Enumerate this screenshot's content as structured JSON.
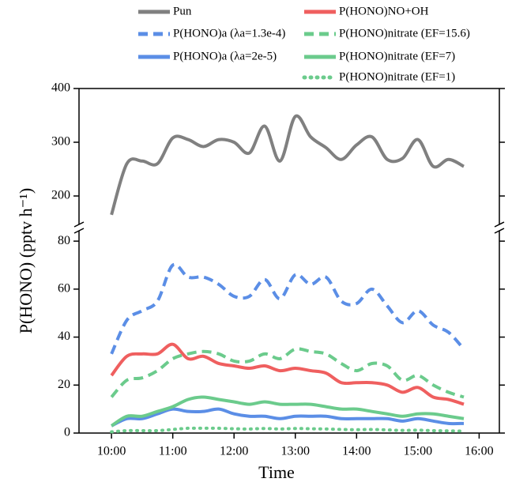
{
  "chart_data": [
    {
      "type": "line",
      "x": [
        10,
        10.25,
        10.5,
        10.75,
        11,
        11.25,
        11.5,
        11.75,
        12,
        12.25,
        12.5,
        12.75,
        13,
        13.25,
        13.5,
        13.75,
        14,
        14.25,
        14.5,
        14.75,
        15,
        15.25,
        15.5,
        15.75
      ],
      "xlim": [
        9.47,
        16.33
      ],
      "ylim": [
        150,
        400
      ],
      "yticks": [
        200,
        300,
        400
      ],
      "series": [
        {
          "name": "Pun",
          "color": "#808080",
          "dash": "solid",
          "values": [
            165,
            260,
            265,
            260,
            308,
            305,
            292,
            305,
            300,
            280,
            330,
            265,
            348,
            310,
            290,
            268,
            295,
            310,
            268,
            270,
            305,
            255,
            268,
            255
          ]
        }
      ]
    },
    {
      "type": "line",
      "x": [
        10,
        10.25,
        10.5,
        10.75,
        11,
        11.25,
        11.5,
        11.75,
        12,
        12.25,
        12.5,
        12.75,
        13,
        13.25,
        13.5,
        13.75,
        14,
        14.25,
        14.5,
        14.75,
        15,
        15.25,
        15.5,
        15.75
      ],
      "xlim": [
        9.47,
        16.33
      ],
      "xticks": [
        {
          "value": 10,
          "label": "10:00"
        },
        {
          "value": 11,
          "label": "11:00"
        },
        {
          "value": 12,
          "label": "12:00"
        },
        {
          "value": 13,
          "label": "13:00"
        },
        {
          "value": 14,
          "label": "14:00"
        },
        {
          "value": 15,
          "label": "15:00"
        },
        {
          "value": 16,
          "label": "16:00"
        }
      ],
      "ylim": [
        0,
        84
      ],
      "yticks": [
        0,
        20,
        40,
        60,
        80
      ],
      "x_label": "Time",
      "y_label": "P(HONO) (pptv h⁻¹)",
      "series": [
        {
          "name": "P(HONO)a (λa=1.3e-4)",
          "color": "#5b8ee6",
          "dash": "dash",
          "values": [
            33,
            47,
            51,
            55,
            70,
            65,
            65,
            62,
            57,
            57,
            64,
            56,
            66,
            62,
            65,
            55,
            54,
            60,
            53,
            46,
            51,
            45,
            42,
            35
          ]
        },
        {
          "name": "P(HONO)a (λa=2e-5)",
          "color": "#5b8ee6",
          "dash": "solid",
          "values": [
            3,
            6,
            6,
            8,
            10,
            9,
            9,
            10,
            8,
            7,
            7,
            6,
            7,
            7,
            7,
            6,
            6,
            6,
            6,
            5,
            6,
            5,
            4,
            4
          ]
        },
        {
          "name": "P(HONO)NO+OH",
          "color": "#ef5f5f",
          "dash": "solid",
          "values": [
            24,
            32,
            33,
            33,
            37,
            31,
            32,
            29,
            28,
            27,
            28,
            26,
            27,
            26,
            25,
            21,
            21,
            21,
            20,
            17,
            19,
            15,
            14,
            12
          ]
        },
        {
          "name": "P(HONO)nitrate (EF=15.6)",
          "color": "#6bcb8c",
          "dash": "dash",
          "values": [
            15,
            22,
            23,
            26,
            31,
            33,
            34,
            33,
            30,
            30,
            33,
            31,
            35,
            34,
            33,
            29,
            26,
            29,
            28,
            22,
            24,
            20,
            17,
            15
          ]
        },
        {
          "name": "P(HONO)nitrate (EF=7)",
          "color": "#6bcb8c",
          "dash": "solid",
          "values": [
            3,
            7,
            7,
            9,
            11,
            14,
            15,
            14,
            13,
            12,
            13,
            12,
            12,
            12,
            11,
            10,
            10,
            9,
            8,
            7,
            8,
            8,
            7,
            6
          ]
        },
        {
          "name": "P(HONO)nitrate (EF=1)",
          "color": "#6bcb8c",
          "dash": "dot",
          "values": [
            0.5,
            1,
            1,
            1,
            1.5,
            2,
            2,
            2,
            1.8,
            1.7,
            1.9,
            1.7,
            1.9,
            1.8,
            1.7,
            1.5,
            1.4,
            1.5,
            1.3,
            1.1,
            1.2,
            1,
            0.9,
            0.8
          ]
        }
      ]
    }
  ]
}
